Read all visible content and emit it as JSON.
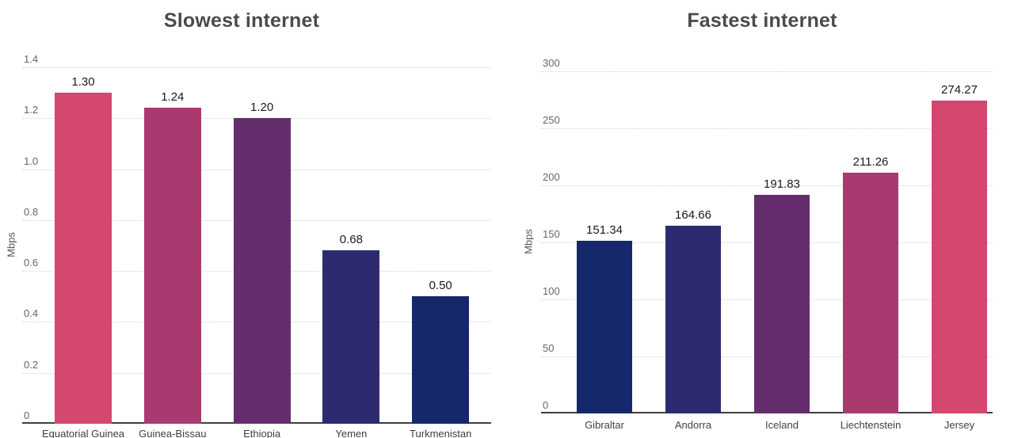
{
  "page": {
    "background": "#ffffff"
  },
  "colors": {
    "grid": "#d4d4d4",
    "axis": "#3f3f3f",
    "title": "#4a4a4a",
    "tick": "#666666",
    "value_label": "#1a1a1a",
    "category_label": "#3f3f3f"
  },
  "chart_data": [
    {
      "type": "bar",
      "title": "Slowest internet",
      "xlabel": "",
      "ylabel": "Mbps",
      "categories": [
        "Equatorial Guinea",
        "Guinea-Bissau",
        "Ethiopia",
        "Yemen",
        "Turkmenistan"
      ],
      "values": [
        1.3,
        1.24,
        1.2,
        0.68,
        0.5
      ],
      "value_labels": [
        "1.30",
        "1.24",
        "1.20",
        "0.68",
        "0.50"
      ],
      "bar_colors": [
        "#d4486f",
        "#a93a70",
        "#662d6e",
        "#2e2a70",
        "#15286b"
      ],
      "ylim": [
        0,
        1.4
      ],
      "yticks": [
        0,
        0.2,
        0.4,
        0.6,
        0.8,
        1.0,
        1.2,
        1.4
      ],
      "ytick_labels": [
        "0",
        "0.2",
        "0.4",
        "0.6",
        "0.8",
        "1.0",
        "1.2",
        "1.4"
      ],
      "grid": true,
      "legend": false
    },
    {
      "type": "bar",
      "title": "Fastest internet",
      "xlabel": "",
      "ylabel": "Mbps",
      "categories": [
        "Gibraltar",
        "Andorra",
        "Iceland",
        "Liechtenstein",
        "Jersey"
      ],
      "values": [
        151.34,
        164.66,
        191.83,
        211.26,
        274.27
      ],
      "value_labels": [
        "151.34",
        "164.66",
        "191.83",
        "211.26",
        "274.27"
      ],
      "bar_colors": [
        "#15286b",
        "#2e2a70",
        "#662d6e",
        "#a93a70",
        "#d4486f"
      ],
      "ylim": [
        0,
        300
      ],
      "yticks": [
        0,
        50,
        100,
        150,
        200,
        250,
        300
      ],
      "ytick_labels": [
        "0",
        "50",
        "100",
        "150",
        "200",
        "250",
        "300"
      ],
      "grid": true,
      "legend": false
    }
  ]
}
